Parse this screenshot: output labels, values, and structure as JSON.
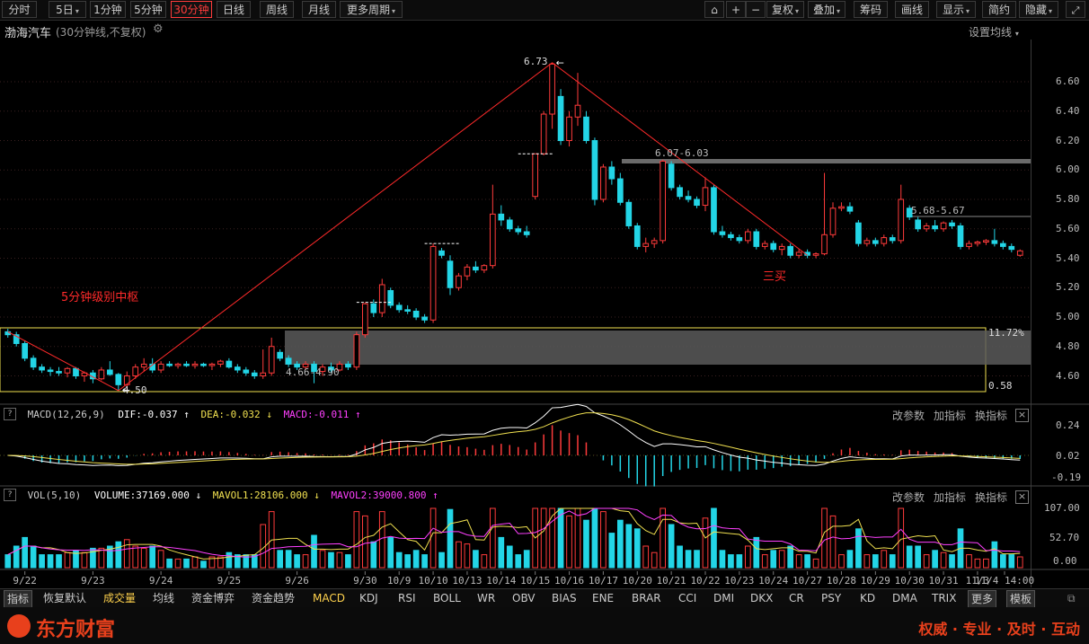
{
  "toolbar": {
    "periods": [
      "分时",
      "5日",
      "1分钟",
      "5分钟",
      "30分钟",
      "日线",
      "周线",
      "月线",
      "更多周期"
    ],
    "active_period": "30分钟",
    "right_buttons": [
      "复权",
      "叠加",
      "筹码",
      "画线",
      "显示",
      "简约",
      "隐藏"
    ]
  },
  "header": {
    "stock_name": "渤海汽车",
    "subtitle": "(30分钟线,不复权)",
    "ma_setting": "设置均线"
  },
  "chart_data": {
    "type": "candlestick",
    "price_axis": {
      "ticks": [
        "6.60",
        "6.40",
        "6.20",
        "6.00",
        "5.80",
        "5.60",
        "5.40",
        "5.20",
        "5.00",
        "4.80",
        "4.60"
      ],
      "ylim": [
        4.4,
        6.8
      ]
    },
    "date_labels": [
      "9/22",
      "9/23",
      "9/24",
      "9/25",
      "9/26",
      "9/30",
      "10/9",
      "10/10",
      "10/13",
      "10/14",
      "10/15",
      "10/16",
      "10/17",
      "10/20",
      "10/21",
      "10/22",
      "10/23",
      "10/24",
      "10/27",
      "10/28",
      "10/29",
      "10/30",
      "10/31",
      "11/3",
      "11/4 14:00"
    ],
    "key_points": [
      {
        "label": "4.50",
        "date": "9/23",
        "price": 4.5
      },
      {
        "label": "6.73",
        "date": "10/16",
        "price": 6.73
      }
    ],
    "annotations": {
      "zone_label": "5分钟级别中枢",
      "zone_range": "4.66-4.90",
      "resistance_1": "6.07-6.03",
      "resistance_2": "5.68-5.67",
      "buy_label": "三买",
      "pct_high": "11.72%",
      "pct_low": "0.58"
    },
    "candles": [
      {
        "date": "9/22",
        "o": 4.9,
        "h": 4.92,
        "l": 4.86,
        "c": 4.88
      },
      {
        "date": "9/22",
        "o": 4.88,
        "h": 4.9,
        "l": 4.8,
        "c": 4.82
      },
      {
        "date": "9/22",
        "o": 4.82,
        "h": 4.84,
        "l": 4.7,
        "c": 4.72
      },
      {
        "date": "9/22",
        "o": 4.72,
        "h": 4.74,
        "l": 4.64,
        "c": 4.66
      },
      {
        "date": "9/22",
        "o": 4.66,
        "h": 4.68,
        "l": 4.62,
        "c": 4.64
      },
      {
        "date": "9/22",
        "o": 4.64,
        "h": 4.66,
        "l": 4.6,
        "c": 4.63
      },
      {
        "date": "9/22",
        "o": 4.63,
        "h": 4.66,
        "l": 4.6,
        "c": 4.62
      },
      {
        "date": "9/22",
        "o": 4.62,
        "h": 4.66,
        "l": 4.59,
        "c": 4.65
      },
      {
        "date": "9/23",
        "o": 4.65,
        "h": 4.66,
        "l": 4.58,
        "c": 4.6
      },
      {
        "date": "9/23",
        "o": 4.6,
        "h": 4.63,
        "l": 4.56,
        "c": 4.62
      },
      {
        "date": "9/23",
        "o": 4.62,
        "h": 4.64,
        "l": 4.55,
        "c": 4.58
      },
      {
        "date": "9/23",
        "o": 4.58,
        "h": 4.66,
        "l": 4.57,
        "c": 4.64
      },
      {
        "date": "9/23",
        "o": 4.64,
        "h": 4.7,
        "l": 4.6,
        "c": 4.61
      },
      {
        "date": "9/23",
        "o": 4.61,
        "h": 4.62,
        "l": 4.5,
        "c": 4.54
      },
      {
        "date": "9/23",
        "o": 4.54,
        "h": 4.63,
        "l": 4.5,
        "c": 4.6
      },
      {
        "date": "9/23",
        "o": 4.6,
        "h": 4.68,
        "l": 4.58,
        "c": 4.66
      },
      {
        "date": "9/24",
        "o": 4.66,
        "h": 4.72,
        "l": 4.63,
        "c": 4.68
      },
      {
        "date": "9/24",
        "o": 4.68,
        "h": 4.72,
        "l": 4.62,
        "c": 4.64
      },
      {
        "date": "9/24",
        "o": 4.64,
        "h": 4.7,
        "l": 4.62,
        "c": 4.68
      },
      {
        "date": "9/24",
        "o": 4.68,
        "h": 4.7,
        "l": 4.66,
        "c": 4.67
      },
      {
        "date": "9/24",
        "o": 4.67,
        "h": 4.69,
        "l": 4.65,
        "c": 4.68
      },
      {
        "date": "9/24",
        "o": 4.68,
        "h": 4.7,
        "l": 4.66,
        "c": 4.67
      },
      {
        "date": "9/24",
        "o": 4.67,
        "h": 4.7,
        "l": 4.65,
        "c": 4.68
      },
      {
        "date": "9/24",
        "o": 4.68,
        "h": 4.69,
        "l": 4.66,
        "c": 4.67
      },
      {
        "date": "9/25",
        "o": 4.67,
        "h": 4.69,
        "l": 4.64,
        "c": 4.68
      },
      {
        "date": "9/25",
        "o": 4.68,
        "h": 4.71,
        "l": 4.66,
        "c": 4.7
      },
      {
        "date": "9/25",
        "o": 4.7,
        "h": 4.72,
        "l": 4.65,
        "c": 4.66
      },
      {
        "date": "9/25",
        "o": 4.66,
        "h": 4.68,
        "l": 4.62,
        "c": 4.64
      },
      {
        "date": "9/25",
        "o": 4.64,
        "h": 4.66,
        "l": 4.6,
        "c": 4.62
      },
      {
        "date": "9/25",
        "o": 4.62,
        "h": 4.64,
        "l": 4.58,
        "c": 4.6
      },
      {
        "date": "9/25",
        "o": 4.6,
        "h": 4.78,
        "l": 4.58,
        "c": 4.62
      },
      {
        "date": "9/25",
        "o": 4.62,
        "h": 4.86,
        "l": 4.6,
        "c": 4.8
      },
      {
        "date": "9/26",
        "o": 4.76,
        "h": 4.78,
        "l": 4.7,
        "c": 4.72
      },
      {
        "date": "9/26",
        "o": 4.72,
        "h": 4.74,
        "l": 4.66,
        "c": 4.68
      },
      {
        "date": "9/26",
        "o": 4.68,
        "h": 4.7,
        "l": 4.64,
        "c": 4.66
      },
      {
        "date": "9/26",
        "o": 4.66,
        "h": 4.7,
        "l": 4.64,
        "c": 4.68
      },
      {
        "date": "9/26",
        "o": 4.68,
        "h": 4.7,
        "l": 4.55,
        "c": 4.63
      },
      {
        "date": "9/26",
        "o": 4.63,
        "h": 4.68,
        "l": 4.6,
        "c": 4.66
      },
      {
        "date": "9/26",
        "o": 4.66,
        "h": 4.69,
        "l": 4.62,
        "c": 4.64
      },
      {
        "date": "9/26",
        "o": 4.64,
        "h": 4.7,
        "l": 4.63,
        "c": 4.68
      },
      {
        "date": "9/30",
        "o": 4.68,
        "h": 4.7,
        "l": 4.64,
        "c": 4.66
      },
      {
        "date": "9/30",
        "o": 4.66,
        "h": 4.9,
        "l": 4.64,
        "c": 4.88
      },
      {
        "date": "9/30",
        "o": 4.88,
        "h": 5.1,
        "l": 4.86,
        "c": 5.09
      },
      {
        "date": "9/30",
        "o": 5.09,
        "h": 5.12,
        "l": 5.0,
        "c": 5.03
      },
      {
        "date": "10/9",
        "o": 5.03,
        "h": 5.26,
        "l": 5.0,
        "c": 5.22
      },
      {
        "date": "10/9",
        "o": 5.18,
        "h": 5.2,
        "l": 5.06,
        "c": 5.08
      },
      {
        "date": "10/9",
        "o": 5.08,
        "h": 5.1,
        "l": 5.03,
        "c": 5.05
      },
      {
        "date": "10/9",
        "o": 5.05,
        "h": 5.08,
        "l": 5.02,
        "c": 5.04
      },
      {
        "date": "10/10",
        "o": 5.04,
        "h": 5.06,
        "l": 4.98,
        "c": 5.0
      },
      {
        "date": "10/10",
        "o": 5.0,
        "h": 5.02,
        "l": 4.96,
        "c": 4.98
      },
      {
        "date": "10/10",
        "o": 4.98,
        "h": 5.5,
        "l": 4.96,
        "c": 5.48
      },
      {
        "date": "10/10",
        "o": 5.45,
        "h": 5.47,
        "l": 5.4,
        "c": 5.42
      },
      {
        "date": "10/13",
        "o": 5.38,
        "h": 5.42,
        "l": 5.15,
        "c": 5.2
      },
      {
        "date": "10/13",
        "o": 5.2,
        "h": 5.3,
        "l": 5.18,
        "c": 5.28
      },
      {
        "date": "10/13",
        "o": 5.28,
        "h": 5.36,
        "l": 5.25,
        "c": 5.34
      },
      {
        "date": "10/13",
        "o": 5.34,
        "h": 5.38,
        "l": 5.3,
        "c": 5.32
      },
      {
        "date": "10/14",
        "o": 5.32,
        "h": 5.36,
        "l": 5.3,
        "c": 5.35
      },
      {
        "date": "10/14",
        "o": 5.35,
        "h": 5.9,
        "l": 5.33,
        "c": 5.7
      },
      {
        "date": "10/14",
        "o": 5.7,
        "h": 5.76,
        "l": 5.62,
        "c": 5.66
      },
      {
        "date": "10/14",
        "o": 5.66,
        "h": 5.68,
        "l": 5.58,
        "c": 5.6
      },
      {
        "date": "10/15",
        "o": 5.6,
        "h": 5.62,
        "l": 5.56,
        "c": 5.58
      },
      {
        "date": "10/15",
        "o": 5.58,
        "h": 5.62,
        "l": 5.54,
        "c": 5.56
      },
      {
        "date": "10/15",
        "o": 5.82,
        "h": 6.11,
        "l": 5.8,
        "c": 6.11
      },
      {
        "date": "10/15",
        "o": 6.11,
        "h": 6.4,
        "l": 6.1,
        "c": 6.38
      },
      {
        "date": "10/16",
        "o": 6.38,
        "h": 6.73,
        "l": 6.28,
        "c": 6.72
      },
      {
        "date": "10/16",
        "o": 6.5,
        "h": 6.55,
        "l": 6.17,
        "c": 6.2
      },
      {
        "date": "10/16",
        "o": 6.2,
        "h": 6.4,
        "l": 6.16,
        "c": 6.36
      },
      {
        "date": "10/16",
        "o": 6.36,
        "h": 6.66,
        "l": 6.3,
        "c": 6.44
      },
      {
        "date": "10/17",
        "o": 6.36,
        "h": 6.4,
        "l": 6.18,
        "c": 6.2
      },
      {
        "date": "10/17",
        "o": 6.2,
        "h": 6.22,
        "l": 5.76,
        "c": 5.8
      },
      {
        "date": "10/17",
        "o": 5.8,
        "h": 6.04,
        "l": 5.78,
        "c": 6.02
      },
      {
        "date": "10/17",
        "o": 6.02,
        "h": 6.06,
        "l": 5.9,
        "c": 5.94
      },
      {
        "date": "10/20",
        "o": 5.94,
        "h": 5.98,
        "l": 5.76,
        "c": 5.78
      },
      {
        "date": "10/20",
        "o": 5.78,
        "h": 5.8,
        "l": 5.6,
        "c": 5.62
      },
      {
        "date": "10/20",
        "o": 5.62,
        "h": 5.64,
        "l": 5.46,
        "c": 5.48
      },
      {
        "date": "10/20",
        "o": 5.48,
        "h": 5.54,
        "l": 5.44,
        "c": 5.5
      },
      {
        "date": "10/21",
        "o": 5.5,
        "h": 5.54,
        "l": 5.47,
        "c": 5.52
      },
      {
        "date": "10/21",
        "o": 5.52,
        "h": 6.07,
        "l": 5.5,
        "c": 6.06
      },
      {
        "date": "10/21",
        "o": 6.04,
        "h": 6.06,
        "l": 5.86,
        "c": 5.88
      },
      {
        "date": "10/21",
        "o": 5.88,
        "h": 5.9,
        "l": 5.8,
        "c": 5.82
      },
      {
        "date": "10/22",
        "o": 5.82,
        "h": 5.86,
        "l": 5.78,
        "c": 5.8
      },
      {
        "date": "10/22",
        "o": 5.8,
        "h": 5.82,
        "l": 5.74,
        "c": 5.76
      },
      {
        "date": "10/22",
        "o": 5.76,
        "h": 5.95,
        "l": 5.72,
        "c": 5.88
      },
      {
        "date": "10/22",
        "o": 5.88,
        "h": 5.9,
        "l": 5.56,
        "c": 5.58
      },
      {
        "date": "10/23",
        "o": 5.58,
        "h": 5.62,
        "l": 5.54,
        "c": 5.56
      },
      {
        "date": "10/23",
        "o": 5.56,
        "h": 5.58,
        "l": 5.52,
        "c": 5.54
      },
      {
        "date": "10/23",
        "o": 5.54,
        "h": 5.56,
        "l": 5.5,
        "c": 5.52
      },
      {
        "date": "10/23",
        "o": 5.52,
        "h": 5.6,
        "l": 5.5,
        "c": 5.58
      },
      {
        "date": "10/24",
        "o": 5.58,
        "h": 5.6,
        "l": 5.46,
        "c": 5.48
      },
      {
        "date": "10/24",
        "o": 5.48,
        "h": 5.52,
        "l": 5.46,
        "c": 5.5
      },
      {
        "date": "10/24",
        "o": 5.5,
        "h": 5.52,
        "l": 5.44,
        "c": 5.46
      },
      {
        "date": "10/24",
        "o": 5.46,
        "h": 5.5,
        "l": 5.42,
        "c": 5.48
      },
      {
        "date": "10/27",
        "o": 5.48,
        "h": 5.5,
        "l": 5.4,
        "c": 5.42
      },
      {
        "date": "10/27",
        "o": 5.42,
        "h": 5.46,
        "l": 5.4,
        "c": 5.44
      },
      {
        "date": "10/27",
        "o": 5.44,
        "h": 5.46,
        "l": 5.4,
        "c": 5.42
      },
      {
        "date": "10/27",
        "o": 5.42,
        "h": 5.44,
        "l": 5.4,
        "c": 5.43
      },
      {
        "date": "10/28",
        "o": 5.43,
        "h": 5.98,
        "l": 5.42,
        "c": 5.56
      },
      {
        "date": "10/28",
        "o": 5.56,
        "h": 5.78,
        "l": 5.54,
        "c": 5.74
      },
      {
        "date": "10/28",
        "o": 5.74,
        "h": 5.78,
        "l": 5.72,
        "c": 5.75
      },
      {
        "date": "10/28",
        "o": 5.75,
        "h": 5.78,
        "l": 5.7,
        "c": 5.72
      },
      {
        "date": "10/29",
        "o": 5.64,
        "h": 5.66,
        "l": 5.48,
        "c": 5.5
      },
      {
        "date": "10/29",
        "o": 5.5,
        "h": 5.54,
        "l": 5.48,
        "c": 5.52
      },
      {
        "date": "10/29",
        "o": 5.52,
        "h": 5.54,
        "l": 5.48,
        "c": 5.5
      },
      {
        "date": "10/29",
        "o": 5.5,
        "h": 5.56,
        "l": 5.48,
        "c": 5.54
      },
      {
        "date": "10/30",
        "o": 5.54,
        "h": 5.56,
        "l": 5.5,
        "c": 5.52
      },
      {
        "date": "10/30",
        "o": 5.52,
        "h": 5.9,
        "l": 5.5,
        "c": 5.8
      },
      {
        "date": "10/30",
        "o": 5.74,
        "h": 5.76,
        "l": 5.66,
        "c": 5.68
      },
      {
        "date": "10/30",
        "o": 5.66,
        "h": 5.68,
        "l": 5.58,
        "c": 5.6
      },
      {
        "date": "10/31",
        "o": 5.6,
        "h": 5.64,
        "l": 5.58,
        "c": 5.62
      },
      {
        "date": "10/31",
        "o": 5.62,
        "h": 5.66,
        "l": 5.58,
        "c": 5.6
      },
      {
        "date": "10/31",
        "o": 5.6,
        "h": 5.65,
        "l": 5.58,
        "c": 5.64
      },
      {
        "date": "10/31",
        "o": 5.64,
        "h": 5.66,
        "l": 5.6,
        "c": 5.62
      },
      {
        "date": "11/3",
        "o": 5.62,
        "h": 5.64,
        "l": 5.46,
        "c": 5.48
      },
      {
        "date": "11/3",
        "o": 5.48,
        "h": 5.52,
        "l": 5.46,
        "c": 5.5
      },
      {
        "date": "11/3",
        "o": 5.5,
        "h": 5.52,
        "l": 5.48,
        "c": 5.51
      },
      {
        "date": "11/3",
        "o": 5.51,
        "h": 5.53,
        "l": 5.49,
        "c": 5.52
      },
      {
        "date": "11/4",
        "o": 5.52,
        "h": 5.6,
        "l": 5.48,
        "c": 5.5
      },
      {
        "date": "11/4",
        "o": 5.5,
        "h": 5.52,
        "l": 5.46,
        "c": 5.48
      },
      {
        "date": "11/4",
        "o": 5.48,
        "h": 5.5,
        "l": 5.44,
        "c": 5.46
      },
      {
        "date": "11/4",
        "o": 5.42,
        "h": 5.46,
        "l": 5.41,
        "c": 5.45
      }
    ]
  },
  "macd": {
    "title": "MACD(12,26,9)",
    "dif": "DIF:-0.037",
    "dea": "DEA:-0.032",
    "macd": "MACD:-0.011",
    "axis": [
      "0.24",
      "0.02",
      "-0.19"
    ],
    "btn_change": "改参数",
    "btn_add": "加指标",
    "btn_swap": "换指标"
  },
  "vol": {
    "title": "VOL(5,10)",
    "volume": "VOLUME:37169.000",
    "mavol1": "MAVOL1:28106.000",
    "mavol2": "MAVOL2:39000.800",
    "axis": [
      "107.00",
      "52.70",
      "0.00"
    ],
    "btn_change": "改参数",
    "btn_add": "加指标",
    "btn_swap": "换指标"
  },
  "tabs": [
    "指标",
    "恢复默认",
    "成交量",
    "均线",
    "资金博弈",
    "资金趋势",
    "MACD",
    "KDJ",
    "RSI",
    "BOLL",
    "WR",
    "OBV",
    "BIAS",
    "ENE",
    "BRAR",
    "CCI",
    "DMI",
    "DKX",
    "CR",
    "PSY",
    "KD",
    "DMA",
    "TRIX",
    "更多",
    "模板"
  ],
  "footer": {
    "brand": "东方财富",
    "slogan": "权威 · 专业 · 及时 · 互动"
  },
  "colors": {
    "up": "#ff3b3b",
    "down": "#23d5e6",
    "dif": "#ffffff",
    "dea": "#f0e050",
    "mavol2": "#ff40ff",
    "annotation": "#ff2a2a",
    "zone": "#f0e050"
  }
}
